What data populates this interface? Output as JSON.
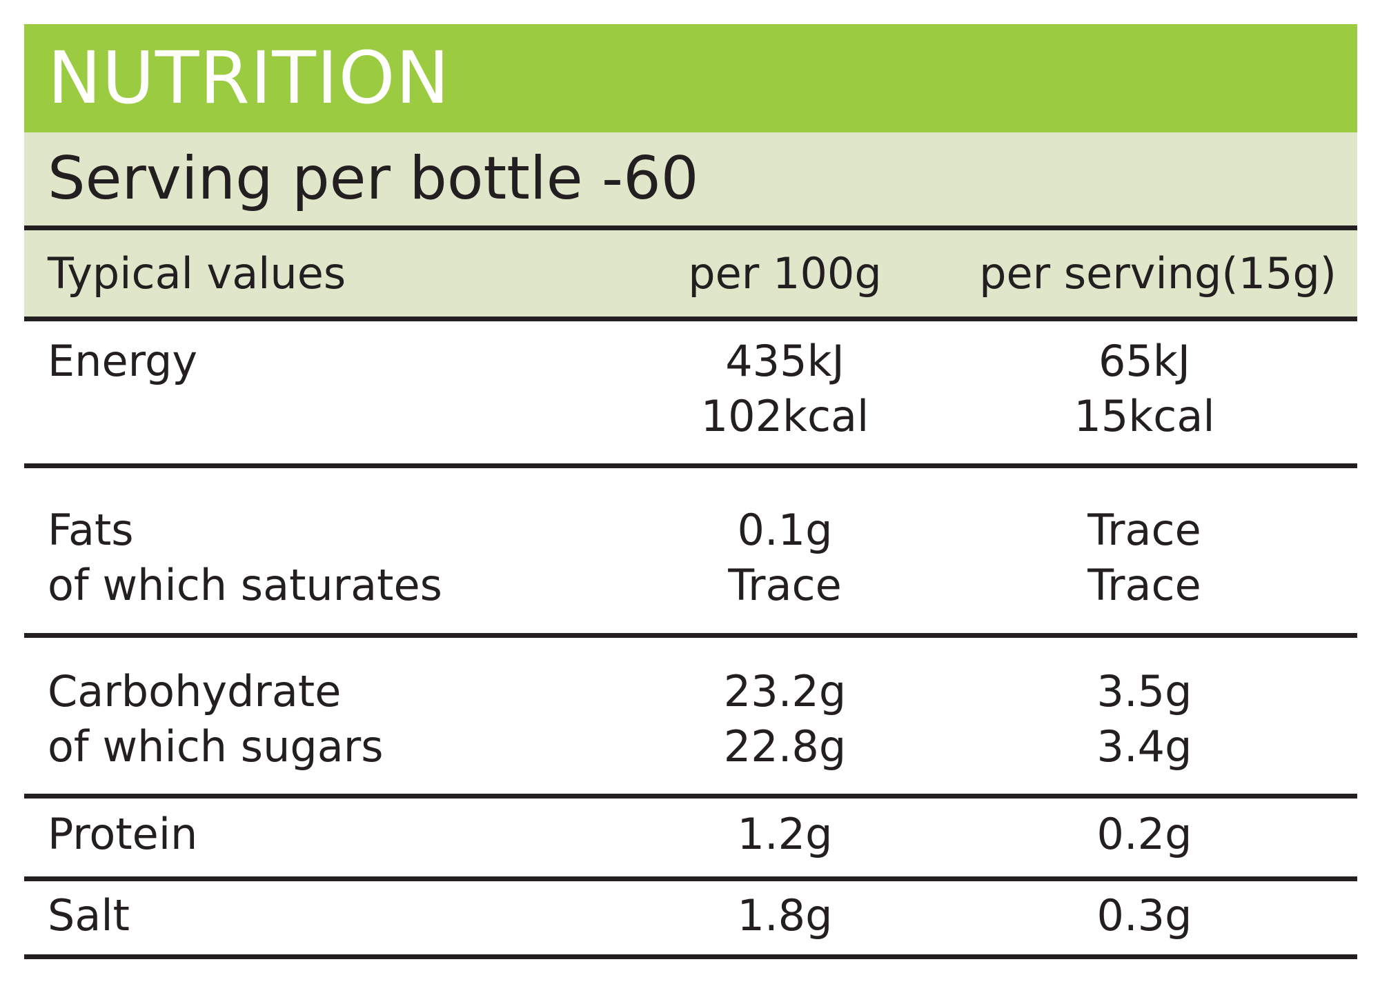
{
  "title": "NUTRITION",
  "serving": "Serving per bottle -60",
  "columns": {
    "label": "Typical values",
    "per100": "per 100g",
    "perServing": "per serving(15g)"
  },
  "rows": {
    "energy": {
      "label": [
        "Energy"
      ],
      "per100": [
        "435kJ",
        "102kcal"
      ],
      "perServing": [
        "65kJ",
        "15kcal"
      ]
    },
    "fats": {
      "label": [
        "Fats",
        "of which saturates"
      ],
      "per100": [
        "0.1g",
        "Trace"
      ],
      "perServing": [
        "Trace",
        "Trace"
      ]
    },
    "carbohydrate": {
      "label": [
        "Carbohydrate",
        "of which sugars"
      ],
      "per100": [
        "23.2g",
        "22.8g"
      ],
      "perServing": [
        "3.5g",
        "3.4g"
      ]
    },
    "protein": {
      "label": [
        "Protein"
      ],
      "per100": [
        "1.2g"
      ],
      "perServing": [
        "0.2g"
      ]
    },
    "salt": {
      "label": [
        "Salt"
      ],
      "per100": [
        "1.8g"
      ],
      "perServing": [
        "0.3g"
      ]
    }
  },
  "colors": {
    "title_bg": "#9bcb41",
    "band_bg": "#dfe6c9",
    "text": "#231f20"
  }
}
